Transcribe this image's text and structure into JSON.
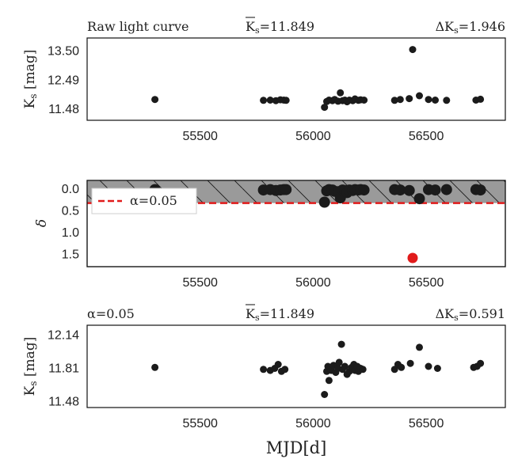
{
  "chart_data": [
    {
      "type": "scatter",
      "title": "Raw light curve",
      "header_mid_prefix": "K",
      "header_mid_value": "=11.849",
      "header_right_prefix": "ΔK",
      "header_right_value": "=1.946",
      "ylabel": "K_s [mag]",
      "ylabel_main": "K",
      "ylabel_sub": "s",
      "ylabel_tail": " [mag]",
      "xlim": [
        55000,
        56850
      ],
      "ylim": [
        13.95,
        11.1
      ],
      "xticks": [
        55500,
        56000,
        56500
      ],
      "xtick_labels": [
        "55500",
        "56000",
        "56500"
      ],
      "yticks": [
        11.48,
        12.49,
        13.5
      ],
      "ytick_labels": [
        "11.48",
        "12.49",
        "13.50"
      ],
      "points": [
        [
          55300,
          11.82
        ],
        [
          55780,
          11.79
        ],
        [
          55810,
          11.8
        ],
        [
          55835,
          11.78
        ],
        [
          55855,
          11.81
        ],
        [
          55870,
          11.8
        ],
        [
          55880,
          11.79
        ],
        [
          56050,
          11.55
        ],
        [
          56060,
          11.75
        ],
        [
          56070,
          11.8
        ],
        [
          56085,
          11.78
        ],
        [
          56095,
          11.82
        ],
        [
          56110,
          11.76
        ],
        [
          56120,
          12.05
        ],
        [
          56130,
          11.78
        ],
        [
          56140,
          11.8
        ],
        [
          56150,
          11.74
        ],
        [
          56160,
          11.8
        ],
        [
          56175,
          11.78
        ],
        [
          56185,
          11.84
        ],
        [
          56200,
          11.79
        ],
        [
          56210,
          11.81
        ],
        [
          56225,
          11.8
        ],
        [
          56360,
          11.79
        ],
        [
          56385,
          11.82
        ],
        [
          56425,
          11.85
        ],
        [
          56440,
          13.55
        ],
        [
          56470,
          11.95
        ],
        [
          56510,
          11.82
        ],
        [
          56540,
          11.8
        ],
        [
          56590,
          11.79
        ],
        [
          56720,
          11.8
        ],
        [
          56740,
          11.83
        ]
      ]
    },
    {
      "type": "scatter",
      "ylabel": "δ",
      "legend_label": "α=0.05",
      "legend_position": "top-left",
      "xlim": [
        55000,
        56850
      ],
      "ylim": [
        -0.2,
        1.78
      ],
      "threshold": 0.32,
      "xticks": [
        55500,
        56000,
        56500
      ],
      "xtick_labels": [
        "55500",
        "56000",
        "56500"
      ],
      "yticks": [
        0.0,
        0.5,
        1.0,
        1.5
      ],
      "ytick_labels": [
        "0.0",
        "0.5",
        "1.0",
        "1.5"
      ],
      "points": [
        [
          55300,
          0.01
        ],
        [
          55780,
          0.02
        ],
        [
          55810,
          0.01
        ],
        [
          55835,
          0.03
        ],
        [
          55855,
          0.02
        ],
        [
          55870,
          0.01
        ],
        [
          55880,
          0.01
        ],
        [
          56050,
          0.3
        ],
        [
          56060,
          0.04
        ],
        [
          56070,
          0.01
        ],
        [
          56085,
          0.02
        ],
        [
          56095,
          0.05
        ],
        [
          56110,
          0.06
        ],
        [
          56120,
          0.2
        ],
        [
          56130,
          0.02
        ],
        [
          56140,
          0.03
        ],
        [
          56150,
          0.08
        ],
        [
          56160,
          0.02
        ],
        [
          56175,
          0.03
        ],
        [
          56185,
          0.01
        ],
        [
          56200,
          0.02
        ],
        [
          56210,
          0.01
        ],
        [
          56225,
          0.02
        ],
        [
          56360,
          0.01
        ],
        [
          56385,
          0.02
        ],
        [
          56425,
          0.03
        ],
        [
          56470,
          0.22
        ],
        [
          56510,
          0.01
        ],
        [
          56540,
          0.02
        ],
        [
          56590,
          0.01
        ],
        [
          56720,
          0.01
        ],
        [
          56740,
          0.02
        ]
      ],
      "outliers": [
        [
          56440,
          1.58
        ]
      ]
    },
    {
      "type": "scatter",
      "header_left_prefix": "α",
      "header_left_value": "=0.05",
      "header_mid_prefix": "K",
      "header_mid_value": "=11.849",
      "header_right_prefix": "ΔK",
      "header_right_value": "=0.591",
      "ylabel": "K_s [mag]",
      "ylabel_main": "K",
      "ylabel_sub": "s",
      "ylabel_tail": " [mag]",
      "xlabel": "MJD[d]",
      "xlim": [
        55000,
        56850
      ],
      "ylim": [
        12.24,
        11.42
      ],
      "xticks": [
        55500,
        56000,
        56500
      ],
      "xtick_labels": [
        "55500",
        "56000",
        "56500"
      ],
      "yticks": [
        11.48,
        11.81,
        12.14
      ],
      "ytick_labels": [
        "11.48",
        "11.81",
        "12.14"
      ],
      "points": [
        [
          55300,
          11.82
        ],
        [
          55780,
          11.8
        ],
        [
          55810,
          11.79
        ],
        [
          55830,
          11.81
        ],
        [
          55845,
          11.85
        ],
        [
          55860,
          11.78
        ],
        [
          55875,
          11.8
        ],
        [
          56050,
          11.55
        ],
        [
          56060,
          11.78
        ],
        [
          56065,
          11.83
        ],
        [
          56070,
          11.69
        ],
        [
          56080,
          11.79
        ],
        [
          56090,
          11.84
        ],
        [
          56100,
          11.77
        ],
        [
          56110,
          11.81
        ],
        [
          56115,
          11.87
        ],
        [
          56125,
          12.05
        ],
        [
          56130,
          11.8
        ],
        [
          56140,
          11.83
        ],
        [
          56150,
          11.75
        ],
        [
          56160,
          11.78
        ],
        [
          56170,
          11.82
        ],
        [
          56180,
          11.85
        ],
        [
          56185,
          11.79
        ],
        [
          56195,
          11.83
        ],
        [
          56200,
          11.78
        ],
        [
          56210,
          11.81
        ],
        [
          56220,
          11.8
        ],
        [
          56360,
          11.8
        ],
        [
          56375,
          11.85
        ],
        [
          56390,
          11.82
        ],
        [
          56430,
          11.86
        ],
        [
          56470,
          12.02
        ],
        [
          56510,
          11.83
        ],
        [
          56550,
          11.81
        ],
        [
          56710,
          11.82
        ],
        [
          56725,
          11.83
        ],
        [
          56740,
          11.86
        ]
      ]
    }
  ]
}
